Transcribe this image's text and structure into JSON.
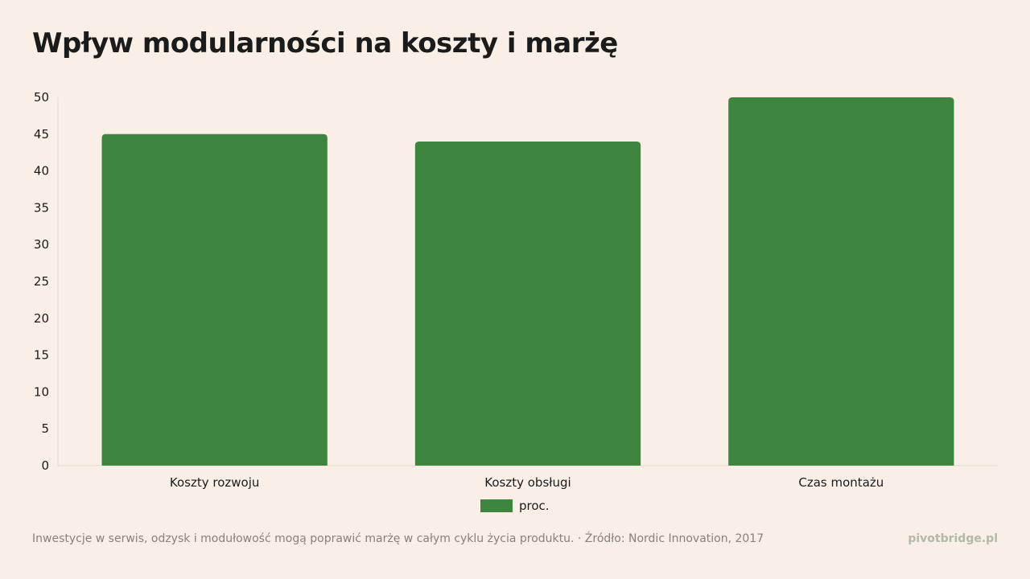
{
  "title": "Wpływ modularności na koszty i marżę",
  "chart_data": {
    "type": "bar",
    "categories": [
      "Koszty rozwoju",
      "Koszty obsługi",
      "Czas montażu"
    ],
    "series": [
      {
        "name": "proc.",
        "values": [
          45,
          44,
          50
        ]
      }
    ],
    "ylim": [
      0,
      50
    ],
    "yticks": [
      0,
      5,
      10,
      15,
      20,
      25,
      30,
      35,
      40,
      45,
      50
    ],
    "grid": false,
    "legend_position": "bottom-center",
    "bar_color": "#3e8540",
    "axis_color": "#e2d8ce"
  },
  "legend": {
    "label": "proc."
  },
  "footer": {
    "note": "Inwestycje w serwis, odzysk i modułowość mogą poprawić marżę w całym cyklu życia produktu. · Źródło: Nordic Innovation, 2017",
    "brand": "pivotbridge.pl"
  }
}
